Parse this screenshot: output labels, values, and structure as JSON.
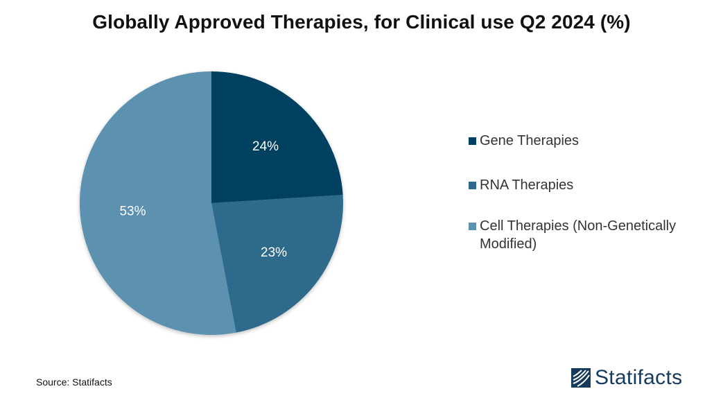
{
  "chart_data": {
    "type": "pie",
    "title": "Globally Approved Therapies, for Clinical use Q2 2024 (%)",
    "slices": [
      {
        "label": "Gene Therapies",
        "value": 24,
        "display": "24%",
        "color": "#004060"
      },
      {
        "label": "RNA Therapies",
        "value": 23,
        "display": "23%",
        "color": "#2d6a8b"
      },
      {
        "label": "Cell Therapies (Non-Genetically Modified)",
        "value": 53,
        "display": "53%",
        "color": "#5b91af"
      }
    ],
    "legend_position": "right"
  },
  "footer": {
    "source": "Source: Statifacts",
    "brand": "Statifacts"
  }
}
